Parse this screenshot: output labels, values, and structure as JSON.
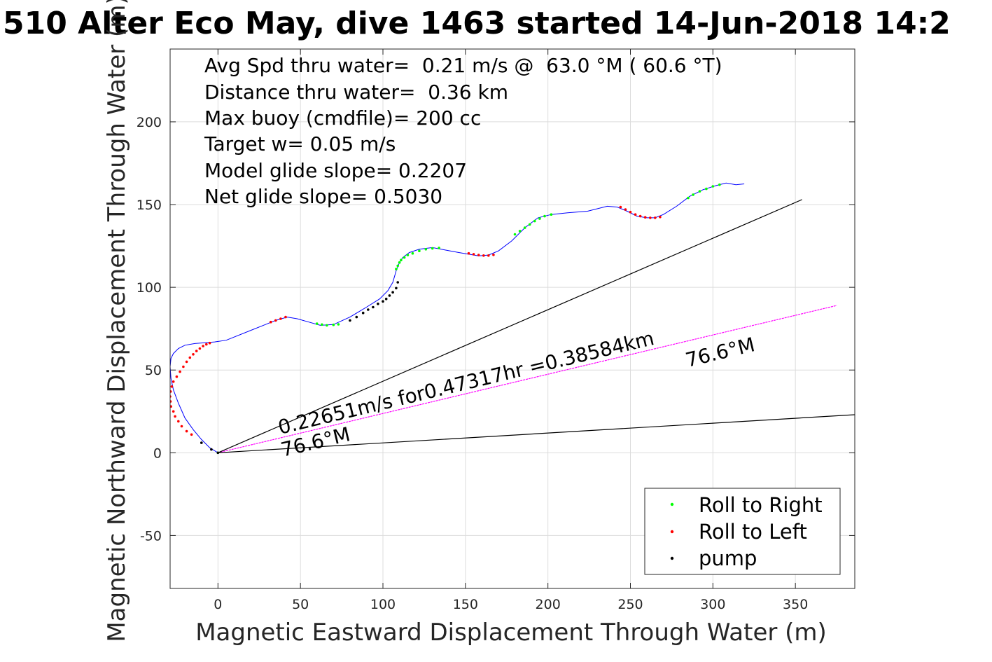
{
  "chart_data": {
    "type": "line",
    "title": "510 Alter Eco May, dive 1463 started 14-Jun-2018 14:2",
    "xlabel": "Magnetic Eastward Displacement Through Water (m)",
    "ylabel": "Magnetic Northward Displacement Through Water (m)",
    "xlim": [
      -29,
      386
    ],
    "ylim": [
      -82,
      244
    ],
    "xticks": [
      0,
      50,
      100,
      150,
      200,
      250,
      300,
      350
    ],
    "yticks": [
      -50,
      0,
      50,
      100,
      150,
      200
    ],
    "grid": true,
    "legend_position": "bottom-right",
    "annotations_text": [
      "Avg Spd thru water=  0.21 m/s @  63.0 °M ( 60.6 °T)",
      "Distance thru water=  0.36 km",
      "Max buoy (cmdfile)= 200 cc",
      "Target w= 0.05 m/s",
      "Model glide slope= 0.2207",
      "Net glide slope= 0.5030"
    ],
    "line_labels": {
      "speed": "0.22651m/s for0.47317hr =0.38584km",
      "heading_lower": "76.6°M",
      "heading_upper": "76.6°M"
    },
    "series": [
      {
        "name": "track",
        "color": "#0000ff",
        "x": [
          0,
          -5,
          -10,
          -15,
          -20,
          -24,
          -27,
          -28.5,
          -29,
          -28.5,
          -27,
          -24,
          -20,
          -14,
          -8,
          -2,
          5,
          20,
          35,
          42,
          48,
          55,
          62,
          70,
          80,
          90,
          98,
          103,
          106,
          108,
          110,
          112,
          116,
          122,
          130,
          138,
          146,
          152,
          158,
          164,
          170,
          178,
          186,
          194,
          202,
          212,
          224,
          236,
          242,
          248,
          254,
          260,
          265,
          270,
          278,
          286,
          294,
          302,
          308,
          314,
          319
        ],
        "y": [
          0,
          3,
          8,
          14,
          21,
          30,
          38,
          45,
          52,
          57,
          60,
          63,
          65,
          66,
          66.5,
          67,
          68,
          74,
          80,
          82,
          81,
          79,
          77,
          77.5,
          82,
          88,
          93,
          98,
          103,
          110,
          115,
          118,
          121,
          123,
          124,
          122.5,
          121,
          120,
          119,
          119.5,
          122,
          128,
          136,
          142,
          144,
          145,
          146,
          149,
          148.5,
          146,
          143,
          142,
          142,
          144,
          149,
          155,
          159,
          161.5,
          163,
          162,
          162.5
        ]
      },
      {
        "name": "heading_line",
        "color": "#ff00ff",
        "x": [
          0,
          375
        ],
        "y": [
          0,
          89
        ]
      },
      {
        "name": "bound_upper",
        "color": "#000000",
        "x": [
          0,
          354
        ],
        "y": [
          0,
          153
        ]
      },
      {
        "name": "bound_lower",
        "color": "#000000",
        "x": [
          0,
          386
        ],
        "y": [
          0,
          23
        ]
      }
    ],
    "markers": [
      {
        "name": "Roll to Right",
        "color": "#00ff00",
        "x": [
          0,
          60,
          63,
          66,
          70,
          73,
          108,
          109,
          110,
          111,
          113,
          115,
          118,
          122,
          126,
          130,
          134,
          180,
          183,
          186,
          189,
          192,
          195,
          198,
          202,
          285,
          288,
          292,
          296,
          300,
          304
        ],
        "y": [
          0,
          78,
          77.5,
          77,
          77.3,
          77.6,
          111,
          113,
          115,
          116.5,
          118,
          119.5,
          120.5,
          122,
          123,
          123.5,
          123.8,
          132,
          134,
          136,
          138,
          140,
          141.5,
          143,
          144,
          154,
          156,
          158,
          159.5,
          161,
          162
        ]
      },
      {
        "name": "Roll to Left",
        "color": "#ff0000",
        "x": [
          -28.5,
          -28.8,
          -29,
          -28.7,
          -28,
          -27,
          -25,
          -23,
          -21,
          -19,
          -17,
          -15,
          -13,
          -11,
          -9,
          -7,
          -5,
          32,
          35,
          38,
          41,
          152,
          155,
          158,
          161,
          164,
          167,
          244,
          247,
          250,
          253,
          256,
          259,
          262,
          265,
          268,
          -27,
          -26,
          -24,
          -22,
          -19,
          -16
        ],
        "y": [
          28,
          31,
          34,
          37,
          40,
          43,
          46,
          49,
          52,
          55,
          57.5,
          59.5,
          61.5,
          63,
          64.5,
          65.5,
          66.3,
          79,
          80,
          81,
          82,
          120.5,
          120,
          119.5,
          119.2,
          119.2,
          119.6,
          148.5,
          147,
          145.5,
          144,
          143,
          142.3,
          142,
          142,
          142.5,
          25,
          22,
          19,
          16,
          13,
          11
        ]
      },
      {
        "name": "pump",
        "color": "#000000",
        "x": [
          -10,
          -4,
          0,
          80,
          84,
          88,
          91,
          94,
          97,
          100,
          102,
          104,
          106,
          108,
          109
        ],
        "y": [
          6,
          2,
          0,
          80,
          82,
          84.5,
          86.5,
          88,
          90,
          91.5,
          93,
          95,
          97,
          99.5,
          103
        ]
      }
    ]
  }
}
